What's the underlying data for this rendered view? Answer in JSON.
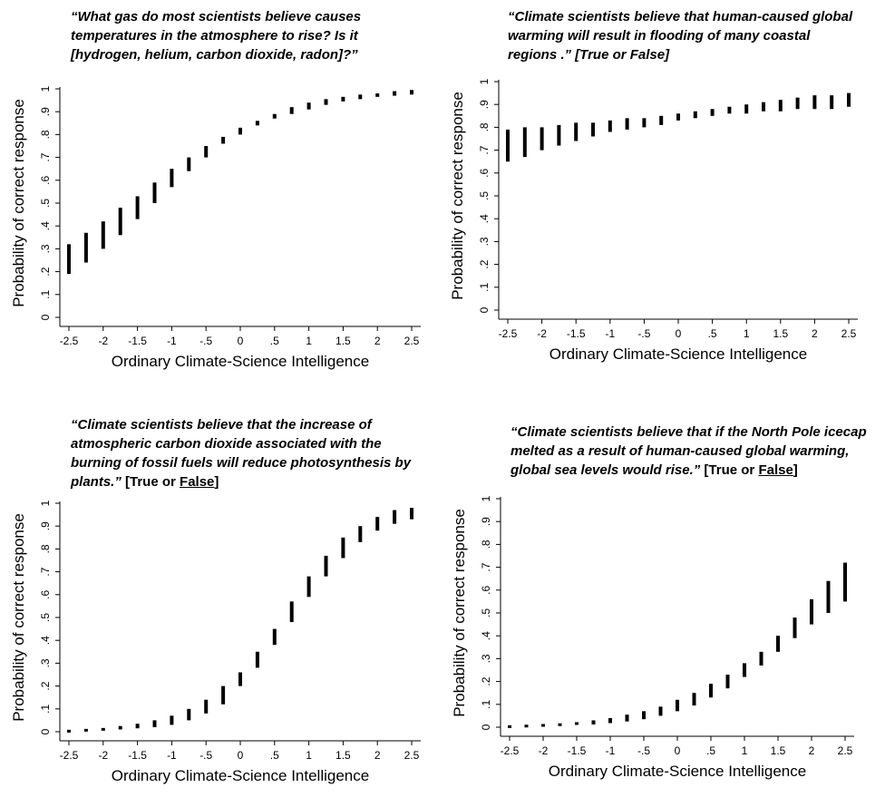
{
  "chart_data": [
    {
      "type": "error_bar",
      "question": {
        "text": "“What gas do most scientists believe causes temperatures in the atmosphere to rise? Is it [hydrogen, helium, carbon dioxide, radon]?”",
        "lines": [
          "“What gas do most scientists believe causes",
          "temperatures in the atmosphere to rise? Is it",
          "[hydrogen, helium, carbon dioxide, radon]?”"
        ],
        "suffix": "",
        "suffix_parts": []
      },
      "xlabel": "Ordinary Climate-Science Intelligence",
      "ylabel": "Probability of correct response",
      "x_ticks": [
        "-2.5",
        "-2",
        "-1.5",
        "-1",
        "-.5",
        "0",
        ".5",
        "1",
        "1.5",
        "2",
        "2.5"
      ],
      "y_ticks": [
        "0",
        ".1",
        ".2",
        ".3",
        ".4",
        ".5",
        ".6",
        ".7",
        ".8",
        ".9",
        "1"
      ],
      "xlim": [
        -2.5,
        2.5
      ],
      "ylim": [
        0,
        1
      ],
      "x": [
        -2.5,
        -2.25,
        -2,
        -1.75,
        -1.5,
        -1.25,
        -1,
        -0.75,
        -0.5,
        -0.25,
        0,
        0.25,
        0.5,
        0.75,
        1,
        1.25,
        1.5,
        1.75,
        2,
        2.25,
        2.5
      ],
      "lower": [
        0.19,
        0.24,
        0.3,
        0.36,
        0.43,
        0.5,
        0.57,
        0.64,
        0.7,
        0.76,
        0.8,
        0.84,
        0.87,
        0.89,
        0.91,
        0.93,
        0.945,
        0.955,
        0.965,
        0.97,
        0.975
      ],
      "upper": [
        0.32,
        0.37,
        0.42,
        0.48,
        0.53,
        0.59,
        0.65,
        0.7,
        0.75,
        0.79,
        0.83,
        0.86,
        0.89,
        0.92,
        0.94,
        0.955,
        0.965,
        0.975,
        0.98,
        0.99,
        0.995
      ]
    },
    {
      "type": "error_bar",
      "question": {
        "text": "“Climate scientists believe that human-caused global warming will result in flooding of many coastal regions .” [True or False]",
        "lines": [
          "“Climate scientists believe that human-caused global",
          "warming will result in flooding of many coastal",
          "regions .” [True or False]"
        ],
        "suffix": "",
        "suffix_parts": []
      },
      "xlabel": "Ordinary Climate-Science Intelligence",
      "ylabel": "Probability of correct response",
      "x_ticks": [
        "-2.5",
        "-2",
        "-1.5",
        "-1",
        "-.5",
        "0",
        ".5",
        "1",
        "1.5",
        "2",
        "2.5"
      ],
      "y_ticks": [
        "0",
        ".1",
        ".2",
        ".3",
        ".4",
        ".5",
        ".6",
        ".7",
        ".8",
        ".9",
        "1"
      ],
      "xlim": [
        -2.5,
        2.5
      ],
      "ylim": [
        0,
        1
      ],
      "x": [
        -2.5,
        -2.25,
        -2,
        -1.75,
        -1.5,
        -1.25,
        -1,
        -0.75,
        -0.5,
        -0.25,
        0,
        0.25,
        0.5,
        0.75,
        1,
        1.25,
        1.5,
        1.75,
        2,
        2.25,
        2.5
      ],
      "lower": [
        0.65,
        0.67,
        0.7,
        0.72,
        0.74,
        0.76,
        0.78,
        0.79,
        0.8,
        0.81,
        0.83,
        0.84,
        0.85,
        0.86,
        0.86,
        0.87,
        0.87,
        0.88,
        0.88,
        0.88,
        0.89
      ],
      "upper": [
        0.79,
        0.8,
        0.8,
        0.81,
        0.82,
        0.82,
        0.83,
        0.84,
        0.84,
        0.85,
        0.86,
        0.87,
        0.88,
        0.89,
        0.9,
        0.91,
        0.92,
        0.93,
        0.94,
        0.94,
        0.95
      ]
    },
    {
      "type": "error_bar",
      "question": {
        "text": "“Climate scientists believe that the increase of atmospheric carbon dioxide associated with the burning of fossil fuels will reduce photosynthesis by plants.” [True or False]",
        "lines": [
          "“Climate scientists believe that the increase of",
          "atmospheric carbon dioxide associated with the",
          "burning of fossil fuels will reduce photosynthesis by",
          "plants.”"
        ],
        "suffix": " [True or False]",
        "suffix_parts": [
          " [True or ",
          "False",
          "]"
        ]
      },
      "xlabel": "Ordinary Climate-Science Intelligence",
      "ylabel": "Probability of correct response",
      "x_ticks": [
        "-2.5",
        "-2",
        "-1.5",
        "-1",
        "-.5",
        "0",
        ".5",
        "1",
        "1.5",
        "2",
        "2.5"
      ],
      "y_ticks": [
        "0",
        ".1",
        ".2",
        ".3",
        ".4",
        ".5",
        ".6",
        ".7",
        ".8",
        ".9",
        "1"
      ],
      "xlim": [
        -2.5,
        2.5
      ],
      "ylim": [
        0,
        1
      ],
      "x": [
        -2.5,
        -2.25,
        -2,
        -1.75,
        -1.5,
        -1.25,
        -1,
        -0.75,
        -0.5,
        -0.25,
        0,
        0.25,
        0.5,
        0.75,
        1,
        1.25,
        1.5,
        1.75,
        2,
        2.25,
        2.5
      ],
      "lower": [
        0.0,
        0.003,
        0.006,
        0.01,
        0.015,
        0.02,
        0.03,
        0.05,
        0.08,
        0.12,
        0.2,
        0.28,
        0.38,
        0.48,
        0.59,
        0.68,
        0.76,
        0.83,
        0.88,
        0.91,
        0.93
      ],
      "upper": [
        0.005,
        0.01,
        0.015,
        0.025,
        0.035,
        0.05,
        0.07,
        0.1,
        0.14,
        0.2,
        0.26,
        0.35,
        0.45,
        0.57,
        0.68,
        0.77,
        0.85,
        0.9,
        0.94,
        0.97,
        0.98
      ]
    },
    {
      "type": "error_bar",
      "question": {
        "text": "“Climate scientists believe that if the North Pole icecap melted as a result of human-caused global warming, global sea levels would rise.” [True or False]",
        "lines": [
          "“Climate scientists believe that if the North Pole icecap",
          "melted as a result of human-caused global warming,",
          "global sea levels would rise.”"
        ],
        "suffix": " [True or False]",
        "suffix_parts": [
          " [True or ",
          "False",
          "]"
        ]
      },
      "xlabel": "Ordinary Climate-Science Intelligence",
      "ylabel": "Probability of correct response",
      "x_ticks": [
        "-2.5",
        "-2",
        "-1.5",
        "-1",
        "-.5",
        "0",
        ".5",
        "1",
        "1.5",
        "2",
        "2.5"
      ],
      "y_ticks": [
        "0",
        ".1",
        ".2",
        ".3",
        ".4",
        ".5",
        ".6",
        ".7",
        ".8",
        ".9",
        "1"
      ],
      "xlim": [
        -2.5,
        2.5
      ],
      "ylim": [
        0,
        1
      ],
      "x": [
        -2.5,
        -2.25,
        -2,
        -1.75,
        -1.5,
        -1.25,
        -1,
        -0.75,
        -0.5,
        -0.25,
        0,
        0.25,
        0.5,
        0.75,
        1,
        1.25,
        1.5,
        1.75,
        2,
        2.25,
        2.5
      ],
      "lower": [
        0.0,
        0.002,
        0.004,
        0.006,
        0.01,
        0.012,
        0.018,
        0.025,
        0.035,
        0.05,
        0.07,
        0.095,
        0.13,
        0.17,
        0.22,
        0.27,
        0.33,
        0.39,
        0.45,
        0.5,
        0.55
      ],
      "upper": [
        0.005,
        0.008,
        0.012,
        0.016,
        0.022,
        0.03,
        0.04,
        0.055,
        0.07,
        0.09,
        0.12,
        0.15,
        0.19,
        0.23,
        0.28,
        0.33,
        0.4,
        0.48,
        0.56,
        0.64,
        0.72
      ]
    }
  ]
}
